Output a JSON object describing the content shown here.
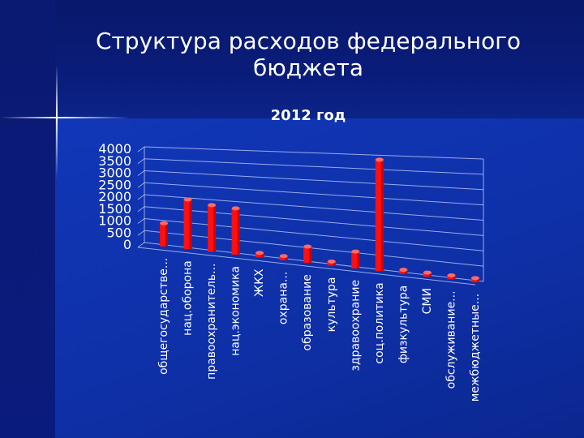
{
  "slide": {
    "title": "Структура расходов федерального бюджета",
    "subtitle": "2012 год"
  },
  "colors": {
    "background": "#0d2a9a",
    "bar": "#ff1010",
    "text": "#ffffff"
  },
  "chart_data": {
    "type": "bar",
    "title": "2012 год",
    "categories": [
      "общегосударстве...",
      "нац.оборона",
      "правоохранитель...",
      "нац.экономика",
      "ЖКХ",
      "охрана...",
      "образование",
      "культура",
      "здравоохрание",
      "соц.политика",
      "физкультура",
      "СМИ",
      "обслуживание...",
      "межбюджетные..."
    ],
    "values": [
      950,
      2000,
      1850,
      1800,
      170,
      60,
      600,
      90,
      600,
      3900,
      40,
      70,
      50,
      50
    ],
    "ylim": [
      0,
      4000
    ],
    "yticks": [
      "4000",
      "3500",
      "3000",
      "2500",
      "2000",
      "1500",
      "1000",
      "500",
      "0"
    ],
    "grid": true,
    "legend": "none"
  }
}
